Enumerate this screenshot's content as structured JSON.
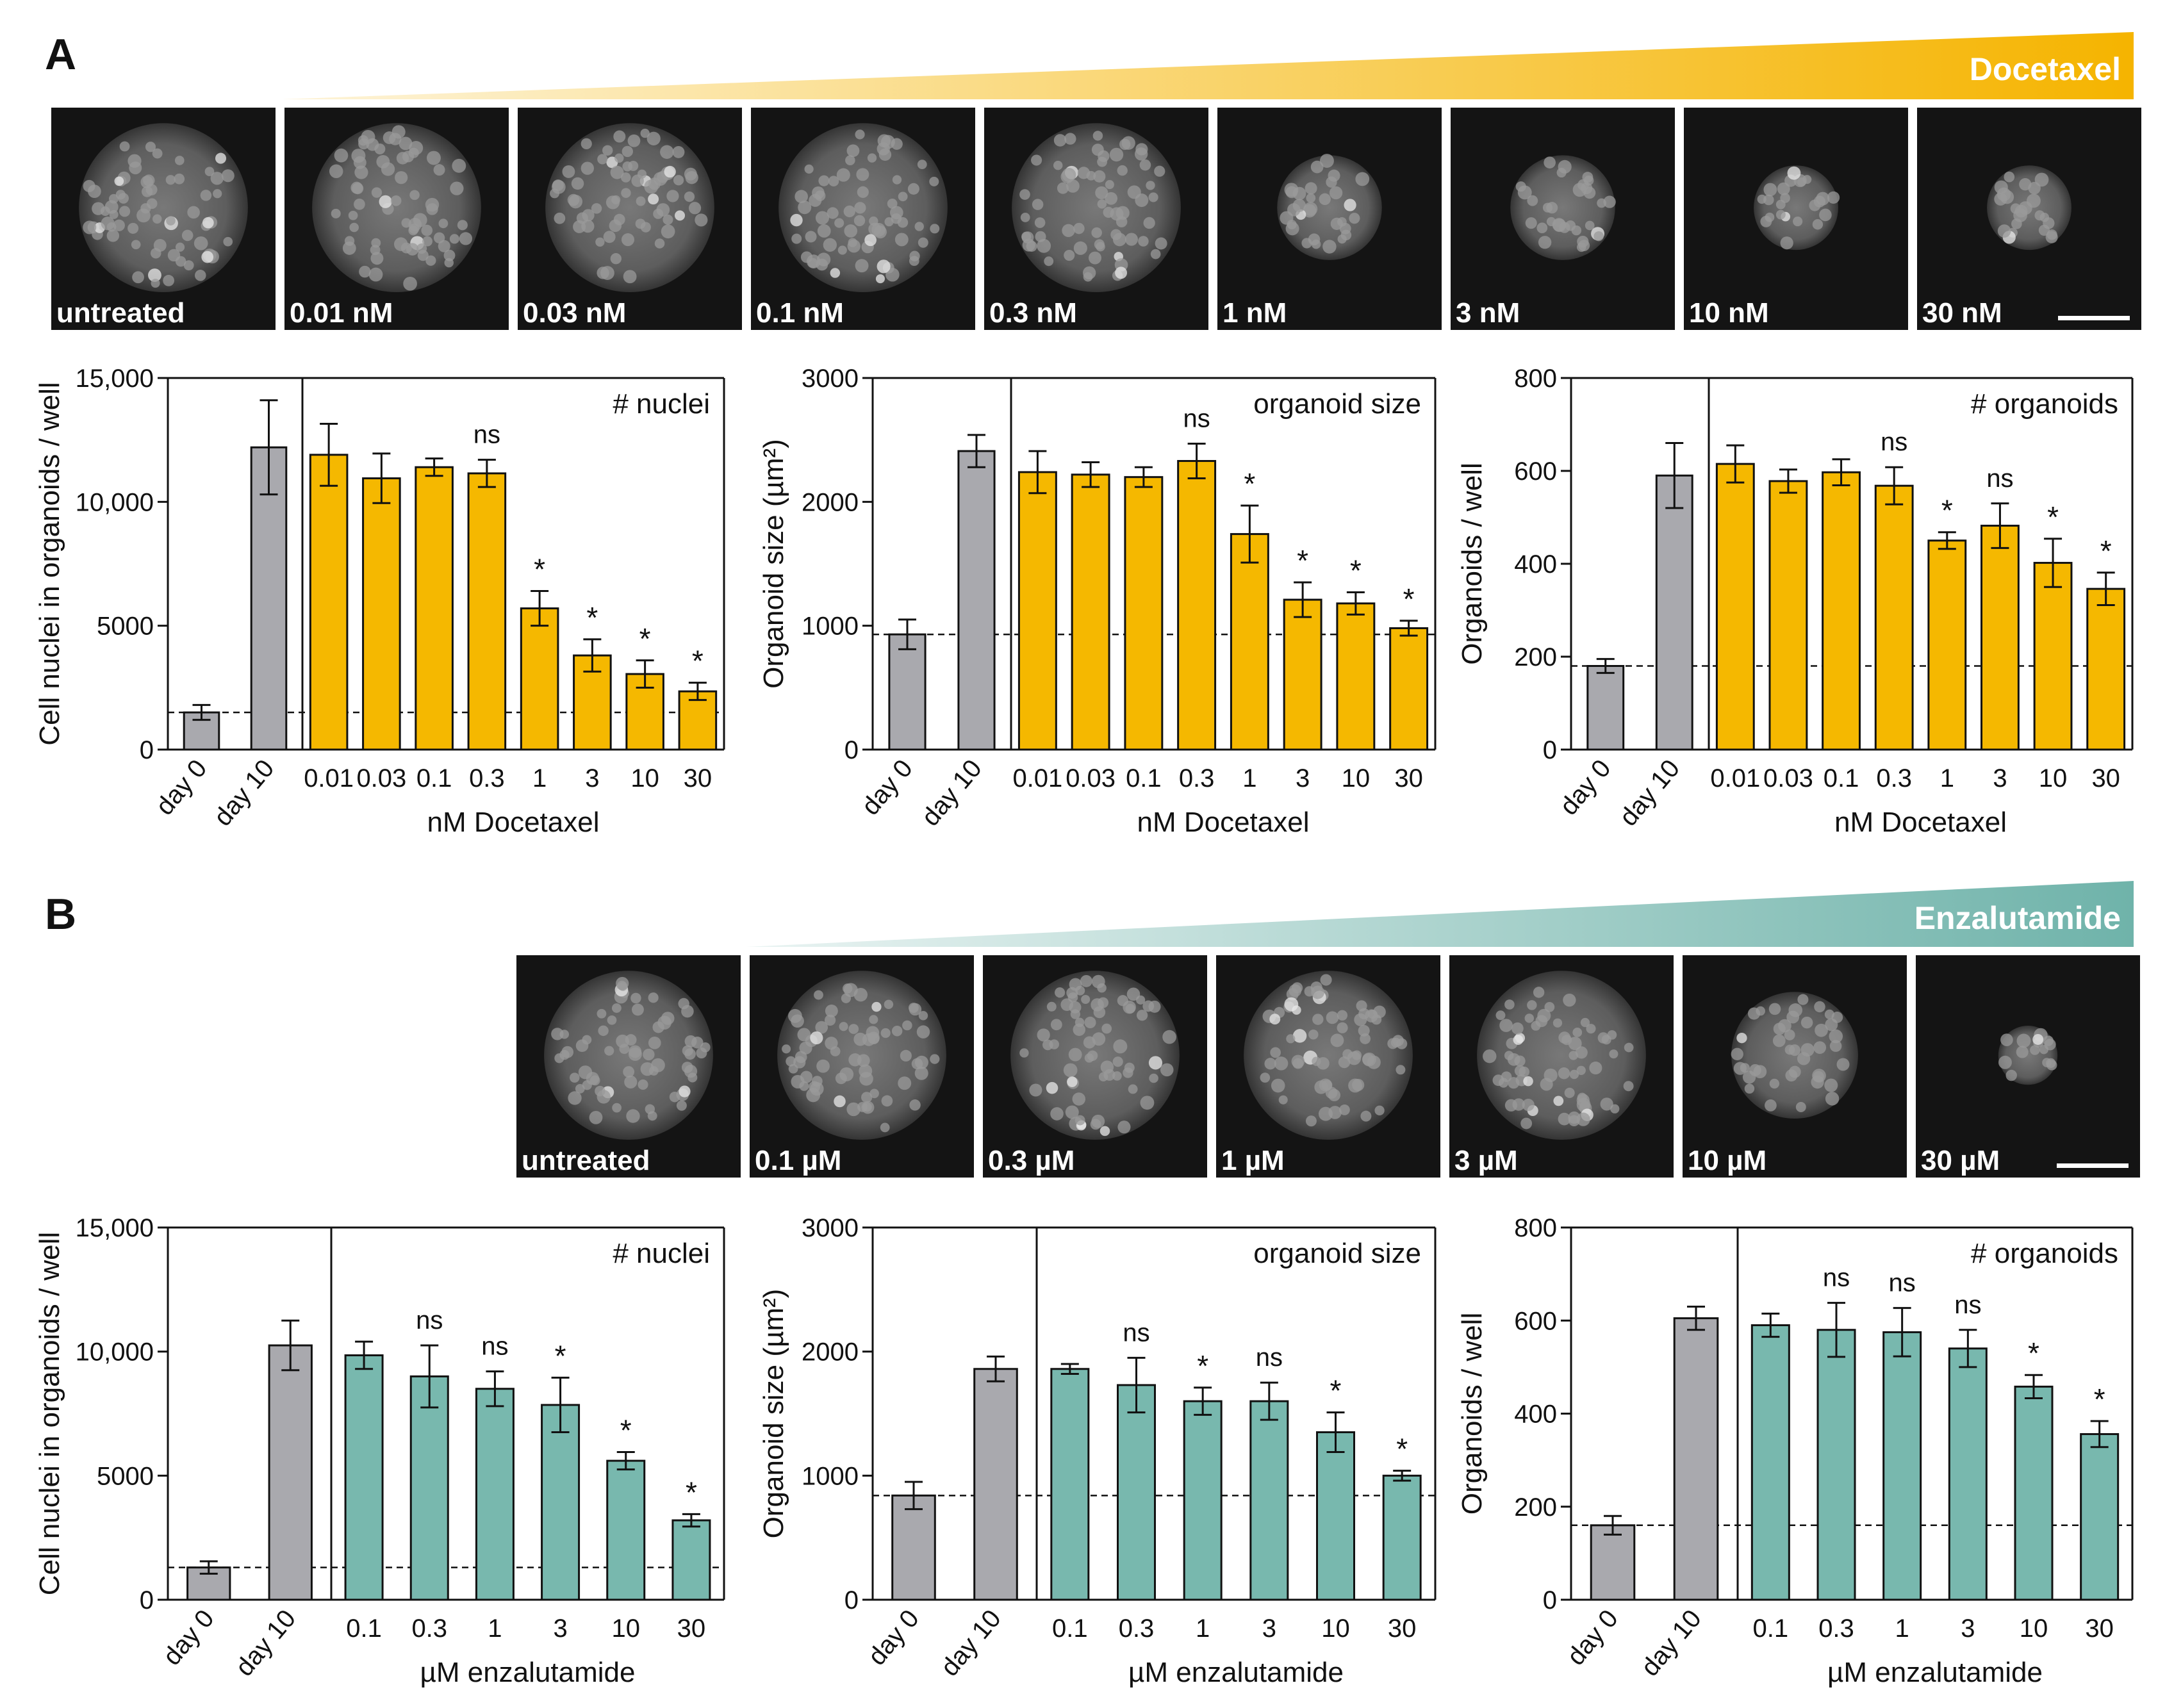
{
  "panels": [
    {
      "label": "A",
      "drug": "Docetaxel",
      "gradient_color": "#f5b400",
      "images": [
        "untreated",
        "0.01 nM",
        "0.03 nM",
        "0.1 nM",
        "0.3 nM",
        "1 nM",
        "3 nM",
        "10 nM",
        "30 nM"
      ],
      "xlabel": "nM Docetaxel"
    },
    {
      "label": "B",
      "drug": "Enzalutamide",
      "gradient_color": "#6fb3aa",
      "images": [
        "untreated",
        "0.1 µM",
        "0.3 µM",
        "1 µM",
        "3 µM",
        "10 µM",
        "30 µM"
      ],
      "xlabel": "µM enzalutamide"
    }
  ],
  "chart_data": [
    {
      "type": "bar",
      "panel": "A",
      "annotation": "# nuclei",
      "ylabel": "Cell nuclei in organoids / well",
      "xlabel": "nM Docetaxel",
      "ylim": [
        0,
        15000
      ],
      "yticks": [
        "0",
        "5000",
        "10,000",
        "15,000"
      ],
      "control_categories": [
        "day 0",
        "day 10"
      ],
      "control_values": [
        1500,
        12200
      ],
      "control_errors": [
        300,
        1900
      ],
      "categories": [
        "0.01",
        "0.03",
        "0.1",
        "0.3",
        "1",
        "3",
        "10",
        "30"
      ],
      "values": [
        11900,
        10950,
        11400,
        11150,
        5700,
        3800,
        3050,
        2350
      ],
      "errors": [
        1250,
        1000,
        350,
        550,
        700,
        650,
        550,
        350
      ],
      "significance": [
        "",
        "",
        "",
        "ns",
        "*",
        "*",
        "*",
        "*"
      ],
      "bar_color": "#f5b800",
      "control_color": "#a9a9ae",
      "baseline": 1500
    },
    {
      "type": "bar",
      "panel": "A",
      "annotation": "organoid size",
      "ylabel": "Organoid size (µm²)",
      "xlabel": "nM Docetaxel",
      "ylim": [
        0,
        3000
      ],
      "yticks": [
        "0",
        "1000",
        "2000",
        "3000"
      ],
      "control_categories": [
        "day 0",
        "day 10"
      ],
      "control_values": [
        930,
        2410
      ],
      "control_errors": [
        120,
        130
      ],
      "categories": [
        "0.01",
        "0.03",
        "0.1",
        "0.3",
        "1",
        "3",
        "10",
        "30"
      ],
      "values": [
        2240,
        2220,
        2200,
        2330,
        1740,
        1210,
        1180,
        980
      ],
      "errors": [
        170,
        100,
        80,
        140,
        230,
        140,
        90,
        60
      ],
      "significance": [
        "",
        "",
        "",
        "ns",
        "*",
        "*",
        "*",
        "*"
      ],
      "bar_color": "#f5b800",
      "control_color": "#a9a9ae",
      "baseline": 930
    },
    {
      "type": "bar",
      "panel": "A",
      "annotation": "# organoids",
      "ylabel": "Organoids / well",
      "xlabel": "nM Docetaxel",
      "ylim": [
        0,
        800
      ],
      "yticks": [
        "0",
        "200",
        "400",
        "600",
        "800"
      ],
      "control_categories": [
        "day 0",
        "day 10"
      ],
      "control_values": [
        180,
        590
      ],
      "control_errors": [
        15,
        70
      ],
      "categories": [
        "0.01",
        "0.03",
        "0.1",
        "0.3",
        "1",
        "3",
        "10",
        "30"
      ],
      "values": [
        615,
        578,
        597,
        568,
        450,
        482,
        402,
        346
      ],
      "errors": [
        40,
        25,
        28,
        40,
        18,
        48,
        52,
        35
      ],
      "significance": [
        "",
        "",
        "",
        "ns",
        "*",
        "ns",
        "*",
        "*"
      ],
      "bar_color": "#f5b800",
      "control_color": "#a9a9ae",
      "baseline": 180
    },
    {
      "type": "bar",
      "panel": "B",
      "annotation": "# nuclei",
      "ylabel": "Cell nuclei in organoids / well",
      "xlabel": "µM enzalutamide",
      "ylim": [
        0,
        15000
      ],
      "yticks": [
        "0",
        "5000",
        "10,000",
        "15,000"
      ],
      "control_categories": [
        "day 0",
        "day 10"
      ],
      "control_values": [
        1300,
        10250
      ],
      "control_errors": [
        250,
        1000
      ],
      "categories": [
        "0.1",
        "0.3",
        "1",
        "3",
        "10",
        "30"
      ],
      "values": [
        9850,
        9000,
        8500,
        7850,
        5600,
        3200
      ],
      "errors": [
        550,
        1250,
        700,
        1100,
        350,
        250
      ],
      "significance": [
        "",
        "ns",
        "ns",
        "*",
        "*",
        "*"
      ],
      "bar_color": "#78b8ae",
      "control_color": "#a9a9ae",
      "baseline": 1300
    },
    {
      "type": "bar",
      "panel": "B",
      "annotation": "organoid size",
      "ylabel": "Organoid size (µm²)",
      "xlabel": "µM enzalutamide",
      "ylim": [
        0,
        3000
      ],
      "yticks": [
        "0",
        "1000",
        "2000",
        "3000"
      ],
      "control_categories": [
        "day 0",
        "day 10"
      ],
      "control_values": [
        840,
        1860
      ],
      "control_errors": [
        110,
        100
      ],
      "categories": [
        "0.1",
        "0.3",
        "1",
        "3",
        "10",
        "30"
      ],
      "values": [
        1860,
        1730,
        1600,
        1600,
        1350,
        1000
      ],
      "errors": [
        40,
        220,
        110,
        150,
        160,
        40
      ],
      "significance": [
        "",
        "ns",
        "*",
        "ns",
        "*",
        "*"
      ],
      "bar_color": "#78b8ae",
      "control_color": "#a9a9ae",
      "baseline": 840
    },
    {
      "type": "bar",
      "panel": "B",
      "annotation": "# organoids",
      "ylabel": "Organoids / well",
      "xlabel": "µM enzalutamide",
      "ylim": [
        0,
        800
      ],
      "yticks": [
        "0",
        "200",
        "400",
        "600",
        "800"
      ],
      "control_categories": [
        "day 0",
        "day 10"
      ],
      "control_values": [
        160,
        605
      ],
      "control_errors": [
        20,
        25
      ],
      "categories": [
        "0.1",
        "0.3",
        "1",
        "3",
        "10",
        "30"
      ],
      "values": [
        590,
        580,
        575,
        540,
        458,
        356
      ],
      "errors": [
        25,
        58,
        52,
        40,
        25,
        28
      ],
      "significance": [
        "",
        "ns",
        "ns",
        "ns",
        "*",
        "*"
      ],
      "bar_color": "#78b8ae",
      "control_color": "#a9a9ae",
      "baseline": 160
    }
  ]
}
